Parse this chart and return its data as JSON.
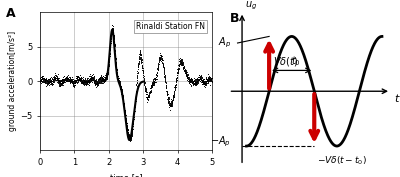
{
  "panel_A_label": "A",
  "panel_B_label": "B",
  "xlabel_A": "time [s]",
  "ylabel_A": "ground acceleration[m/s²]",
  "xlim_A": [
    0,
    5
  ],
  "ylim_A": [
    -10,
    10
  ],
  "xticks_A": [
    0,
    1,
    2,
    3,
    4,
    5
  ],
  "yticks_A": [
    -5,
    0,
    5
  ],
  "legend_text": "Rinaldi Station FN",
  "arrow_color": "#cc0000",
  "sine_x_start": 0.05,
  "sine_x_end": 1.55,
  "t0_x": 0.8,
  "peak_x": 0.3,
  "trough_x": 0.8,
  "Ap": 1.0
}
